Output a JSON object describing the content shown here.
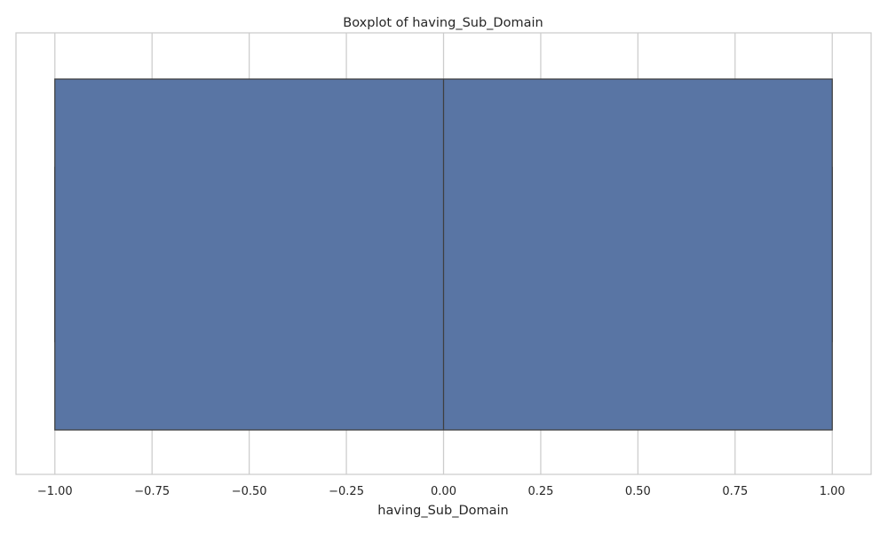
{
  "chart_data": {
    "type": "boxplot",
    "title": "Boxplot of having_Sub_Domain",
    "xlabel": "having_Sub_Domain",
    "ylabel": "",
    "orientation": "horizontal",
    "xlim": [
      -1.1,
      1.1
    ],
    "xticks": [
      -1.0,
      -0.75,
      -0.5,
      -0.25,
      0.0,
      0.25,
      0.5,
      0.75,
      1.0
    ],
    "xtick_labels": [
      "−1.00",
      "−0.75",
      "−0.50",
      "−0.25",
      "0.00",
      "0.25",
      "0.50",
      "0.75",
      "1.00"
    ],
    "grid": true,
    "box": {
      "min": -1.0,
      "q1": -1.0,
      "median": 0.0,
      "q3": 1.0,
      "max": 1.0
    },
    "colors": {
      "box_fill": "#5975a4",
      "box_edge": "#3f3f3f",
      "grid": "#cccccc",
      "frame": "#cccccc",
      "text": "#262626"
    }
  }
}
